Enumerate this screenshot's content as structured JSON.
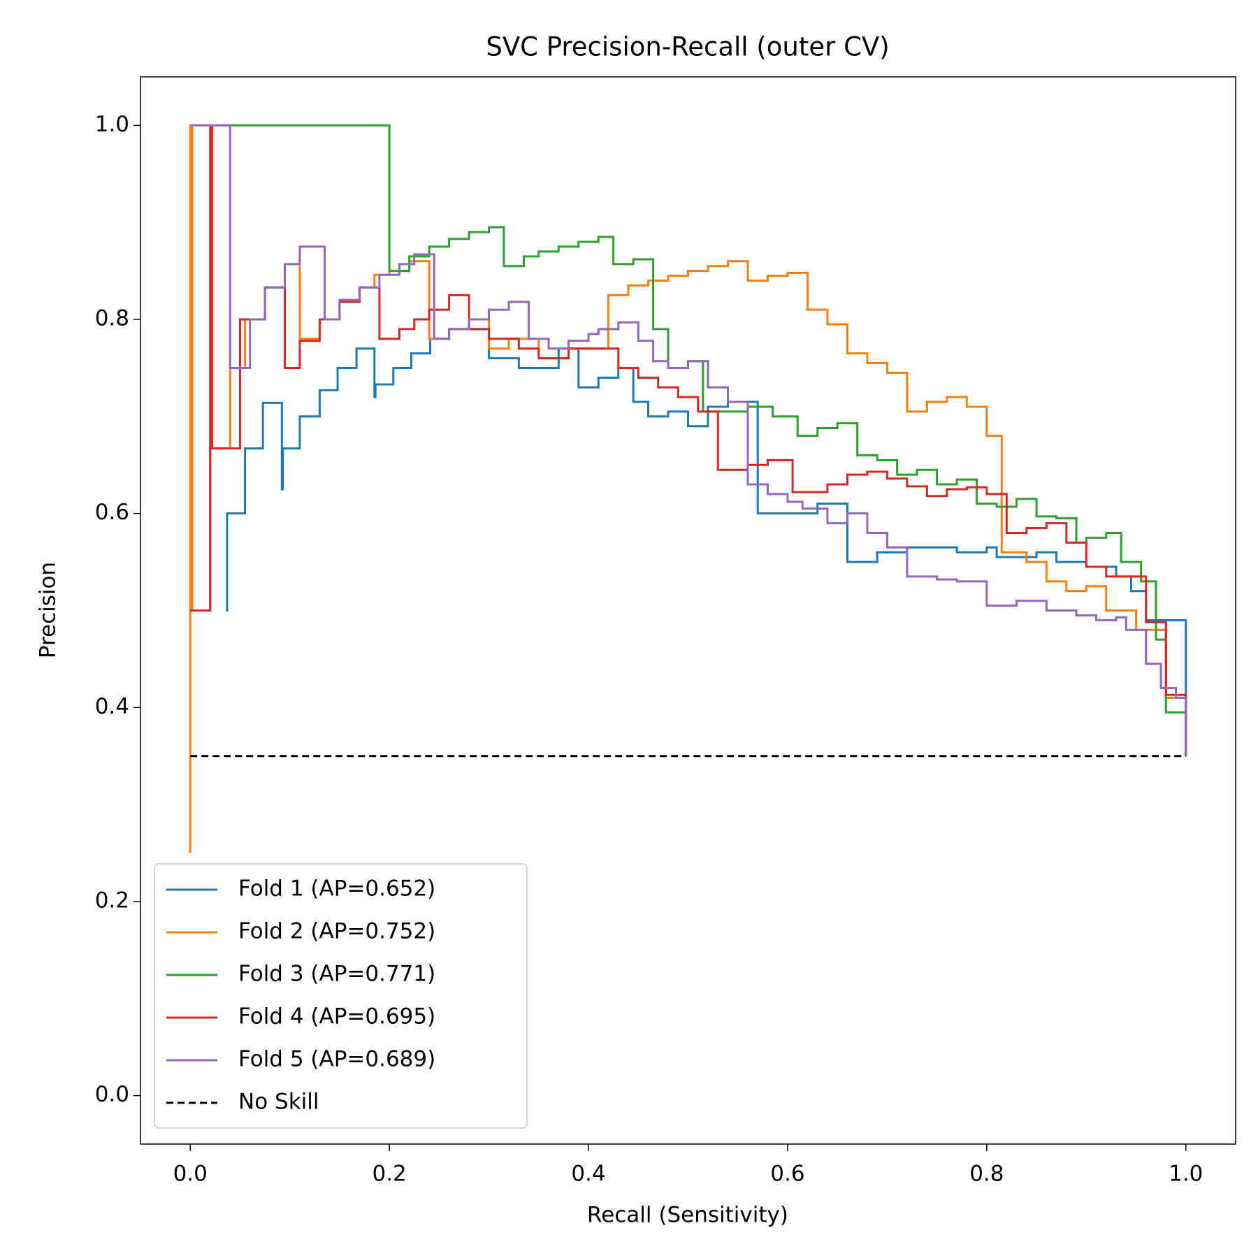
{
  "chart_data": {
    "type": "step",
    "title": "SVC Precision-Recall (outer CV)",
    "x_label": "Recall (Sensitivity)",
    "y_label": "Precision",
    "xlim": [
      -0.05,
      1.05
    ],
    "ylim": [
      -0.05,
      1.05
    ],
    "xticks": [
      {
        "value": 0,
        "label": "0.0"
      },
      0.2,
      0.4,
      0.6,
      0.8,
      {
        "value": 1,
        "label": "1.0"
      }
    ],
    "yticks": [
      {
        "value": 0,
        "label": "0.0"
      },
      0.2,
      0.4,
      0.6,
      0.8,
      {
        "value": 1,
        "label": "1.0"
      }
    ],
    "legend": "lower left",
    "series": [
      {
        "name": "Fold 1 (AP=0.652)",
        "color": "#1f77b4",
        "x": [
          0.036,
          0.037,
          0.055,
          0.073,
          0.092,
          0.093,
          0.11,
          0.13,
          0.148,
          0.167,
          0.185,
          0.186,
          0.204,
          0.222,
          0.241,
          0.26,
          0.3,
          0.33,
          0.37,
          0.39,
          0.41,
          0.43,
          0.445,
          0.46,
          0.48,
          0.5,
          0.52,
          0.54,
          0.57,
          0.6,
          0.63,
          0.66,
          0.69,
          0.72,
          0.77,
          0.8,
          0.81,
          0.85,
          0.87,
          0.9,
          0.93,
          0.945,
          0.96,
          1.0
        ],
        "y": [
          0.5,
          0.6,
          0.667,
          0.714,
          0.625,
          0.667,
          0.7,
          0.727,
          0.75,
          0.77,
          0.72,
          0.733,
          0.75,
          0.765,
          0.78,
          0.79,
          0.76,
          0.75,
          0.77,
          0.73,
          0.74,
          0.75,
          0.715,
          0.7,
          0.705,
          0.69,
          0.71,
          0.715,
          0.6,
          0.6,
          0.61,
          0.55,
          0.56,
          0.565,
          0.56,
          0.565,
          0.555,
          0.56,
          0.55,
          0.545,
          0.535,
          0.52,
          0.49,
          0.35
        ]
      },
      {
        "name": "Fold 2 (AP=0.752)",
        "color": "#ff7f0e",
        "x": [
          0,
          0,
          0.002,
          0.02,
          0.04,
          0.055,
          0.075,
          0.095,
          0.11,
          0.13,
          0.15,
          0.17,
          0.185,
          0.2,
          0.22,
          0.24,
          0.26,
          0.28,
          0.3,
          0.32,
          0.35,
          0.38,
          0.42,
          0.44,
          0.46,
          0.48,
          0.5,
          0.52,
          0.54,
          0.56,
          0.58,
          0.6,
          0.62,
          0.64,
          0.66,
          0.68,
          0.7,
          0.72,
          0.74,
          0.76,
          0.78,
          0.8,
          0.815,
          0.84,
          0.86,
          0.88,
          0.9,
          0.92,
          0.95,
          0.98,
          1.0
        ],
        "y": [
          0.25,
          1.0,
          0.5,
          0.667,
          0.75,
          0.8,
          0.833,
          0.857,
          0.78,
          0.8,
          0.82,
          0.833,
          0.846,
          0.85,
          0.86,
          0.78,
          0.79,
          0.8,
          0.77,
          0.78,
          0.76,
          0.77,
          0.825,
          0.835,
          0.84,
          0.845,
          0.85,
          0.855,
          0.86,
          0.84,
          0.845,
          0.848,
          0.81,
          0.795,
          0.765,
          0.755,
          0.745,
          0.705,
          0.715,
          0.72,
          0.71,
          0.68,
          0.56,
          0.55,
          0.53,
          0.52,
          0.525,
          0.5,
          0.48,
          0.41,
          0.35
        ]
      },
      {
        "name": "Fold 3 (AP=0.771)",
        "color": "#2ca02c",
        "x": [
          0.035,
          0.2,
          0.22,
          0.24,
          0.26,
          0.28,
          0.3,
          0.315,
          0.335,
          0.35,
          0.37,
          0.39,
          0.41,
          0.425,
          0.445,
          0.465,
          0.48,
          0.5,
          0.515,
          0.56,
          0.585,
          0.61,
          0.63,
          0.65,
          0.67,
          0.69,
          0.71,
          0.73,
          0.75,
          0.77,
          0.79,
          0.81,
          0.83,
          0.85,
          0.87,
          0.89,
          0.9,
          0.92,
          0.935,
          0.955,
          0.97,
          0.98,
          1.0
        ],
        "y": [
          1.0,
          0.85,
          0.865,
          0.875,
          0.883,
          0.89,
          0.895,
          0.855,
          0.865,
          0.87,
          0.875,
          0.88,
          0.885,
          0.857,
          0.862,
          0.79,
          0.75,
          0.757,
          0.705,
          0.71,
          0.7,
          0.68,
          0.688,
          0.693,
          0.66,
          0.655,
          0.64,
          0.645,
          0.63,
          0.635,
          0.61,
          0.607,
          0.615,
          0.597,
          0.595,
          0.57,
          0.575,
          0.58,
          0.55,
          0.53,
          0.47,
          0.395,
          0.35
        ]
      },
      {
        "name": "Fold 4 (AP=0.695)",
        "color": "#d62728",
        "x": [
          0.0,
          0.02,
          0.022,
          0.05,
          0.075,
          0.095,
          0.11,
          0.13,
          0.15,
          0.17,
          0.19,
          0.21,
          0.225,
          0.24,
          0.26,
          0.28,
          0.3,
          0.33,
          0.35,
          0.38,
          0.43,
          0.45,
          0.47,
          0.49,
          0.51,
          0.53,
          0.56,
          0.58,
          0.605,
          0.64,
          0.66,
          0.68,
          0.7,
          0.72,
          0.74,
          0.76,
          0.78,
          0.8,
          0.82,
          0.84,
          0.86,
          0.88,
          0.9,
          0.92,
          0.96,
          0.98,
          1.0
        ],
        "y": [
          0.5,
          1.0,
          0.667,
          0.8,
          0.833,
          0.75,
          0.778,
          0.8,
          0.818,
          0.833,
          0.78,
          0.79,
          0.8,
          0.81,
          0.825,
          0.79,
          0.78,
          0.77,
          0.76,
          0.77,
          0.75,
          0.74,
          0.73,
          0.72,
          0.705,
          0.645,
          0.65,
          0.655,
          0.622,
          0.63,
          0.64,
          0.643,
          0.636,
          0.628,
          0.618,
          0.625,
          0.627,
          0.62,
          0.58,
          0.585,
          0.59,
          0.57,
          0.545,
          0.535,
          0.488,
          0.413,
          0.35
        ]
      },
      {
        "name": "Fold 5 (AP=0.689)",
        "color": "#9467bd",
        "x": [
          0,
          0.04,
          0.06,
          0.075,
          0.095,
          0.11,
          0.135,
          0.15,
          0.17,
          0.19,
          0.21,
          0.225,
          0.245,
          0.26,
          0.28,
          0.3,
          0.32,
          0.34,
          0.36,
          0.38,
          0.4,
          0.41,
          0.43,
          0.45,
          0.465,
          0.48,
          0.5,
          0.52,
          0.54,
          0.56,
          0.58,
          0.6,
          0.615,
          0.64,
          0.66,
          0.68,
          0.7,
          0.72,
          0.75,
          0.77,
          0.8,
          0.83,
          0.86,
          0.89,
          0.91,
          0.93,
          0.94,
          0.96,
          0.975,
          0.99,
          1.0
        ],
        "y": [
          1.0,
          0.75,
          0.8,
          0.833,
          0.857,
          0.875,
          0.8,
          0.82,
          0.833,
          0.846,
          0.857,
          0.867,
          0.78,
          0.79,
          0.8,
          0.81,
          0.818,
          0.78,
          0.77,
          0.778,
          0.785,
          0.79,
          0.797,
          0.778,
          0.757,
          0.75,
          0.757,
          0.73,
          0.715,
          0.63,
          0.62,
          0.612,
          0.605,
          0.59,
          0.6,
          0.58,
          0.565,
          0.535,
          0.532,
          0.53,
          0.505,
          0.51,
          0.5,
          0.495,
          0.49,
          0.493,
          0.48,
          0.445,
          0.42,
          0.41,
          0.35
        ]
      },
      {
        "name": "No Skill",
        "color": "#000000",
        "dashed": true,
        "x": [
          0,
          1
        ],
        "y": [
          0.35,
          0.35
        ]
      }
    ]
  }
}
